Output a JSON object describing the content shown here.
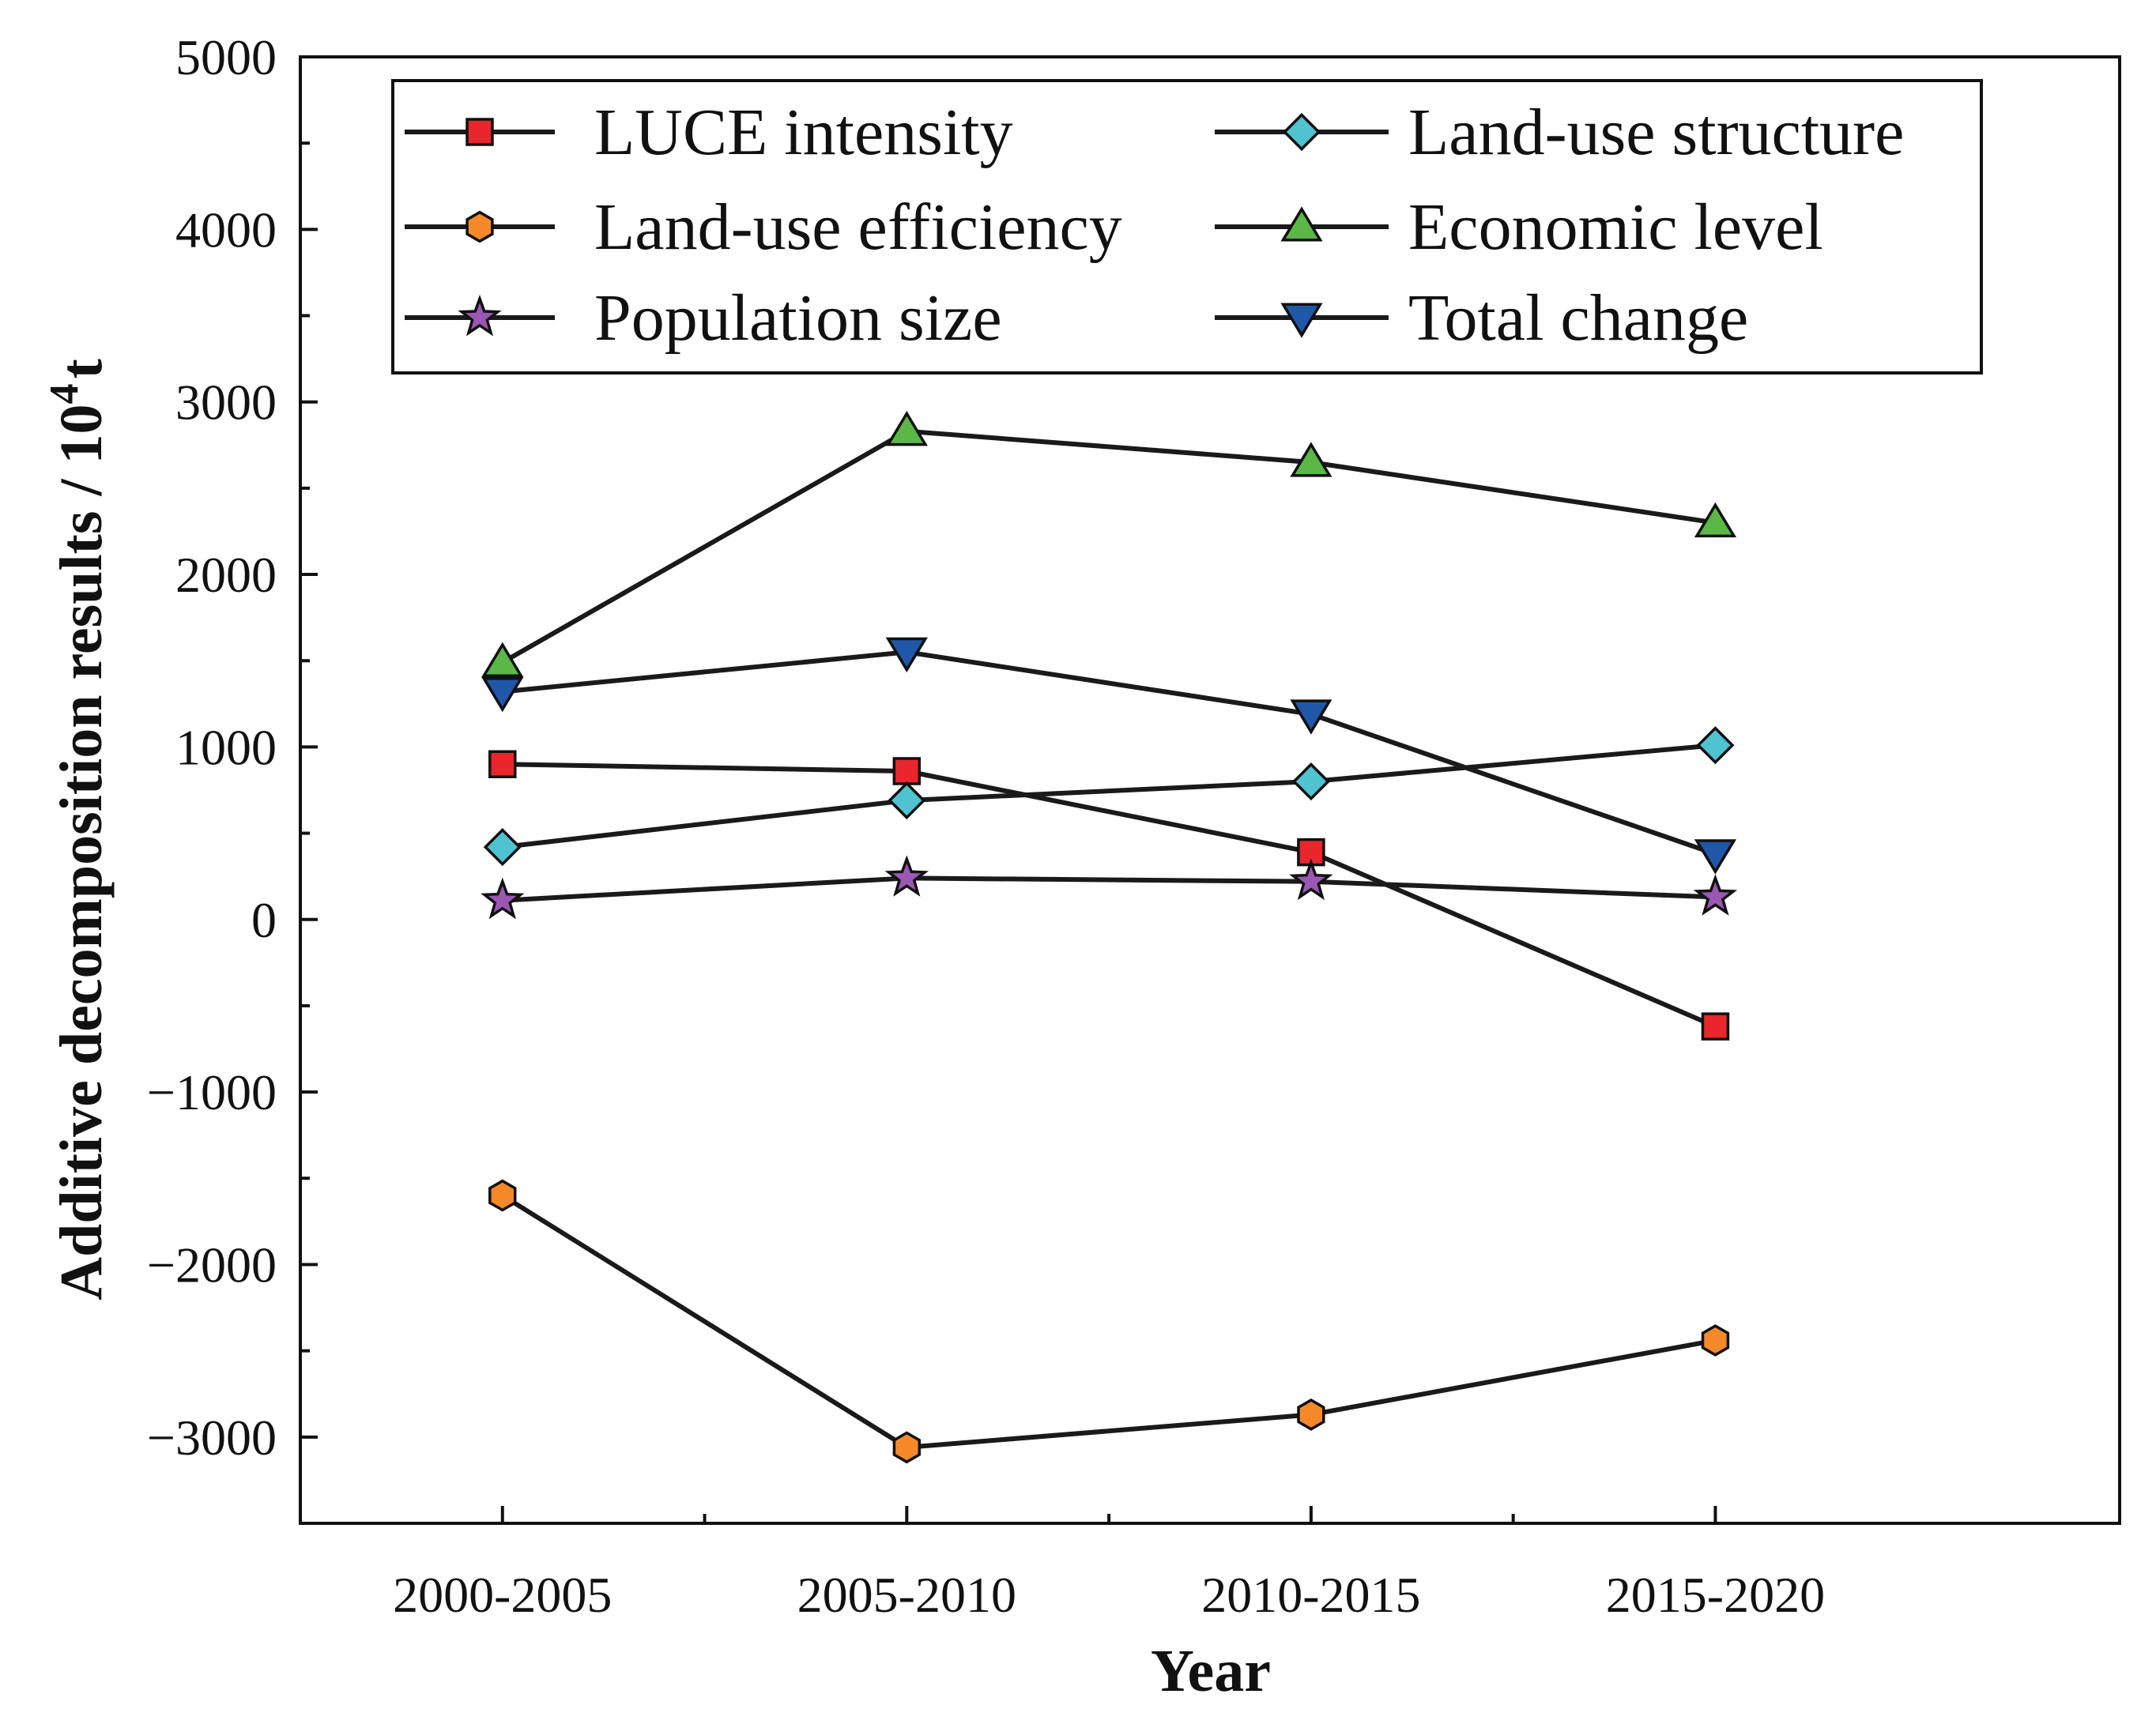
{
  "chart_data": {
    "type": "line",
    "title": "",
    "xlabel": "Year",
    "ylabel": "Additive decomposition results / 10",
    "ylabel_superscript": "4",
    "ylabel_unit": "t",
    "categories": [
      "2000-2005",
      "2005-2010",
      "2010-2015",
      "2015-2020"
    ],
    "ylim": [
      -3500,
      5000
    ],
    "yticks": [
      -3000,
      -2000,
      -1000,
      0,
      1000,
      2000,
      3000,
      4000,
      5000
    ],
    "ytick_labels": [
      "−3000",
      "−2000",
      "−1000",
      "0",
      "1000",
      "2000",
      "3000",
      "4000",
      "5000"
    ],
    "legend_position": "top",
    "series": [
      {
        "name": "LUCE intensity",
        "marker": "square",
        "color": "#e8262b",
        "values": [
          900,
          860,
          390,
          -620
        ]
      },
      {
        "name": "Land-use structure",
        "marker": "diamond",
        "color": "#4fc3d1",
        "values": [
          420,
          690,
          800,
          1010
        ]
      },
      {
        "name": "Land-use efficiency",
        "marker": "hexagon",
        "color": "#f5892a",
        "values": [
          -1600,
          -3060,
          -2870,
          -2440
        ]
      },
      {
        "name": "Economic level",
        "marker": "triangle-up",
        "color": "#5bb746",
        "values": [
          1490,
          2830,
          2650,
          2300
        ]
      },
      {
        "name": "Population size",
        "marker": "star",
        "color": "#9b57b4",
        "values": [
          110,
          240,
          220,
          130
        ]
      },
      {
        "name": "Total change",
        "marker": "triangle-down",
        "color": "#2057a8",
        "values": [
          1320,
          1550,
          1190,
          380
        ]
      }
    ]
  }
}
